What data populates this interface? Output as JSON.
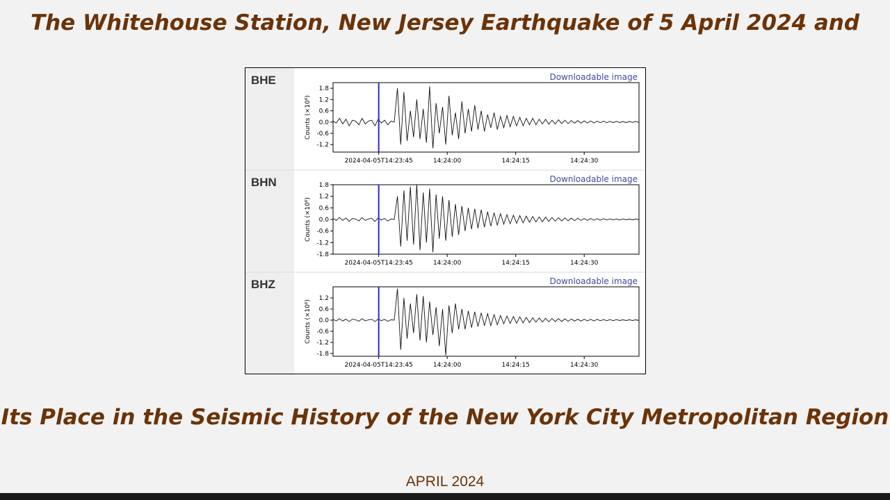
{
  "title_line1": "The Whitehouse Station, New Jersey Earthquake of 5 April 2024 and",
  "title_line2": "Its Place in the Seismic History of the New York City Metropolitan Region",
  "date_text": "APRIL 2024",
  "colors": {
    "title": "#6b3308",
    "marker": "#2b2bcc",
    "link": "#3f4a9c",
    "label_panel": "#efefef",
    "trace": "#111111"
  },
  "chart_data": [
    {
      "type": "line",
      "channel": "BHE",
      "link_text": "Downloadable image",
      "ylabel": "Counts (×10⁶)",
      "yticks": [
        "1.8",
        "1.2",
        "0.6",
        "0.0",
        "-0.6",
        "-1.2"
      ],
      "ylim": [
        -1.6,
        2.1
      ],
      "xticks": [
        "2024-04-05T14:23:45",
        "14:24:00",
        "14:24:15",
        "14:24:30"
      ],
      "x_range": [
        "14:23:35",
        "14:24:42"
      ],
      "marker_time": "14:23:45",
      "grid": false,
      "series": [
        {
          "values": [
            0.05,
            -0.05,
            0.2,
            -0.1,
            0.15,
            -0.2,
            0.1,
            0.05,
            -0.15,
            0.2,
            -0.1,
            0.05,
            0.1,
            -0.2,
            0.15,
            -0.05,
            0.1,
            -0.15,
            0.05,
            0.0,
            1.8,
            -1.2,
            1.6,
            -1.0,
            0.6,
            -0.8,
            1.2,
            -0.9,
            0.7,
            -1.1,
            1.9,
            -1.4,
            1.0,
            -0.6,
            0.8,
            -1.2,
            1.4,
            -0.7,
            0.5,
            -0.9,
            1.1,
            -0.6,
            0.7,
            -0.5,
            0.9,
            -0.4,
            0.6,
            -0.5,
            0.4,
            -0.3,
            0.5,
            -0.4,
            0.3,
            -0.3,
            0.35,
            -0.25,
            0.3,
            -0.2,
            0.25,
            -0.2,
            0.2,
            -0.15,
            0.2,
            -0.15,
            0.15,
            -0.1,
            0.15,
            -0.12,
            0.1,
            -0.1,
            0.12,
            -0.08,
            0.1,
            -0.08,
            0.08,
            -0.06,
            0.08,
            -0.06,
            0.06,
            -0.05,
            0.06,
            -0.05,
            0.05,
            -0.04,
            0.05,
            -0.04,
            0.04,
            -0.03,
            0.04,
            -0.03,
            0.03,
            -0.03,
            0.03,
            -0.02,
            0.03,
            -0.02
          ]
        }
      ]
    },
    {
      "type": "line",
      "channel": "BHN",
      "link_text": "Downloadable image",
      "ylabel": "Counts (×10⁶)",
      "yticks": [
        "1.8",
        "1.2",
        "0.6",
        "0.0",
        "-0.6",
        "-1.2",
        "-1.8"
      ],
      "ylim": [
        -1.8,
        1.8
      ],
      "xticks": [
        "2024-04-05T14:23:45",
        "14:24:00",
        "14:24:15",
        "14:24:30"
      ],
      "x_range": [
        "14:23:35",
        "14:24:42"
      ],
      "marker_time": "14:23:45",
      "grid": false,
      "series": [
        {
          "values": [
            0.05,
            -0.05,
            0.1,
            -0.05,
            0.08,
            -0.1,
            0.05,
            0.02,
            -0.08,
            0.1,
            -0.05,
            0.03,
            0.06,
            -0.1,
            0.08,
            -0.03,
            0.05,
            -0.08,
            0.03,
            0.0,
            1.2,
            -1.4,
            1.5,
            -1.1,
            1.7,
            -1.3,
            1.8,
            -1.6,
            1.4,
            -1.2,
            1.6,
            -1.7,
            1.3,
            -1.0,
            1.2,
            -1.1,
            1.0,
            -0.9,
            0.8,
            -0.8,
            0.7,
            -0.6,
            0.6,
            -0.5,
            0.55,
            -0.45,
            0.5,
            -0.4,
            0.4,
            -0.35,
            0.35,
            -0.3,
            0.3,
            -0.25,
            0.25,
            -0.22,
            0.22,
            -0.2,
            0.2,
            -0.18,
            0.18,
            -0.15,
            0.15,
            -0.13,
            0.13,
            -0.12,
            0.12,
            -0.1,
            0.1,
            -0.09,
            0.09,
            -0.08,
            0.08,
            -0.07,
            0.07,
            -0.06,
            0.06,
            -0.05,
            0.05,
            -0.05,
            0.05,
            -0.04,
            0.04,
            -0.04,
            0.04,
            -0.03,
            0.03,
            -0.03,
            0.03,
            -0.03,
            0.03,
            -0.02,
            0.02,
            -0.02,
            0.02,
            -0.02
          ]
        }
      ]
    },
    {
      "type": "line",
      "channel": "BHZ",
      "link_text": "Downloadable image",
      "ylabel": "Counts (×10⁶)",
      "yticks": [
        "1.2",
        "0.6",
        "0.0",
        "-0.6",
        "-1.2",
        "-1.8"
      ],
      "ylim": [
        -1.95,
        1.8
      ],
      "xticks": [
        "2024-04-05T14:23:45",
        "14:24:00",
        "14:24:15",
        "14:24:30"
      ],
      "x_range": [
        "14:23:35",
        "14:24:42"
      ],
      "marker_time": "14:23:45",
      "grid": false,
      "series": [
        {
          "values": [
            0.04,
            -0.04,
            0.08,
            -0.05,
            0.06,
            -0.08,
            0.05,
            0.02,
            -0.06,
            0.08,
            -0.04,
            0.02,
            0.05,
            -0.08,
            0.06,
            -0.03,
            0.04,
            -0.06,
            0.02,
            0.0,
            1.7,
            -1.6,
            1.2,
            -1.0,
            0.9,
            -0.7,
            1.4,
            -1.1,
            1.3,
            -1.2,
            1.0,
            -0.8,
            0.7,
            -1.4,
            0.6,
            -1.9,
            0.8,
            -0.7,
            0.9,
            -0.5,
            0.6,
            -0.5,
            0.5,
            -0.4,
            0.45,
            -0.35,
            0.4,
            -0.3,
            0.35,
            -0.3,
            0.3,
            -0.25,
            0.25,
            -0.2,
            0.22,
            -0.18,
            0.2,
            -0.16,
            0.18,
            -0.15,
            0.15,
            -0.13,
            0.13,
            -0.11,
            0.12,
            -0.1,
            0.1,
            -0.09,
            0.09,
            -0.08,
            0.08,
            -0.07,
            0.07,
            -0.06,
            0.06,
            -0.05,
            0.05,
            -0.05,
            0.05,
            -0.04,
            0.04,
            -0.04,
            0.04,
            -0.03,
            0.03,
            -0.03,
            0.03,
            -0.03,
            0.03,
            -0.02,
            0.02,
            -0.02,
            0.02,
            -0.02,
            0.02,
            -0.02
          ]
        }
      ]
    }
  ]
}
